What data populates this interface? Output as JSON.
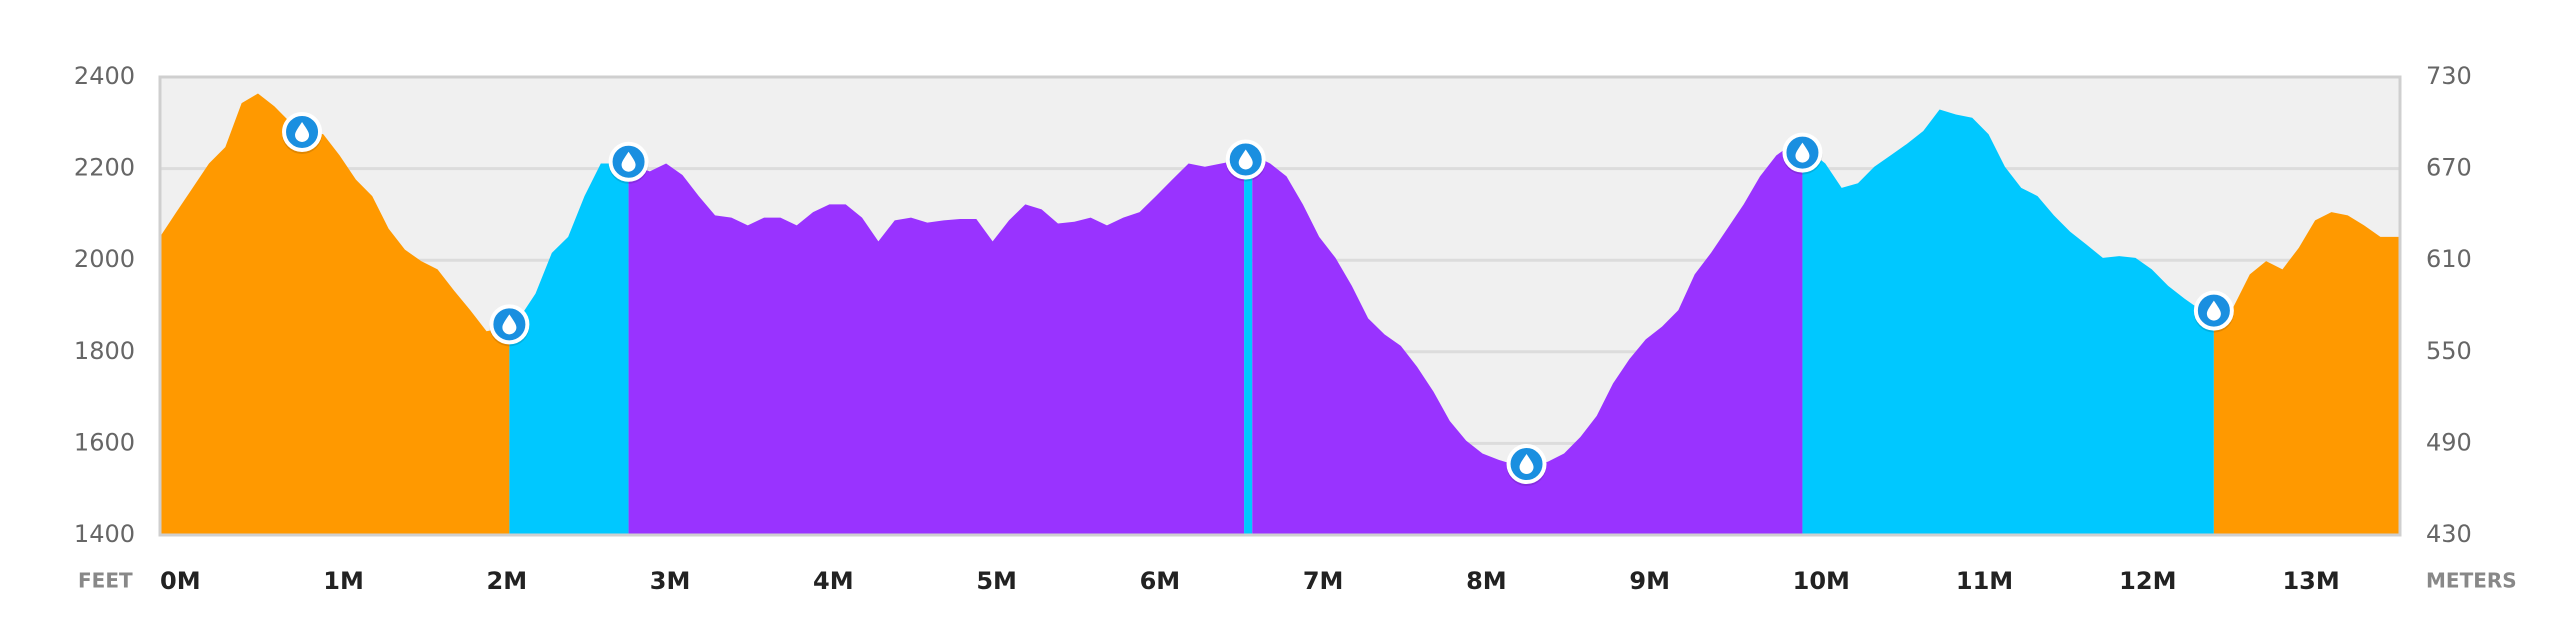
{
  "chart_data": {
    "type": "area",
    "x": [
      0,
      0.1,
      0.2,
      0.3,
      0.4,
      0.5,
      0.6,
      0.7,
      0.8,
      0.9,
      1.0,
      1.1,
      1.2,
      1.3,
      1.4,
      1.5,
      1.6,
      1.7,
      1.8,
      1.9,
      2.0,
      2.14,
      2.2,
      2.3,
      2.4,
      2.5,
      2.6,
      2.7,
      2.87,
      3.0,
      3.1,
      3.2,
      3.3,
      3.4,
      3.5,
      3.6,
      3.7,
      3.8,
      3.9,
      4.0,
      4.1,
      4.2,
      4.3,
      4.4,
      4.5,
      4.6,
      4.7,
      4.8,
      4.9,
      5.0,
      5.1,
      5.2,
      5.3,
      5.4,
      5.5,
      5.6,
      5.7,
      5.8,
      5.9,
      6.0,
      6.1,
      6.2,
      6.3,
      6.4,
      6.5,
      6.6,
      6.7,
      6.8,
      6.9,
      7.0,
      7.1,
      7.2,
      7.3,
      7.4,
      7.5,
      7.6,
      7.7,
      7.8,
      7.9,
      8.0,
      8.1,
      8.2,
      8.3,
      8.4,
      8.5,
      8.6,
      8.7,
      8.8,
      8.9,
      9.0,
      9.1,
      9.2,
      9.3,
      9.4,
      9.5,
      9.6,
      9.7,
      9.8,
      9.9,
      10.0,
      10.1,
      10.2,
      10.3,
      10.4,
      10.5,
      10.6,
      10.7,
      10.8,
      10.9,
      11.0,
      11.1,
      11.2,
      11.3,
      11.4,
      11.5,
      11.6,
      11.7,
      11.8,
      11.9,
      12.0,
      12.1,
      12.2,
      12.3,
      12.4,
      12.5,
      12.6,
      12.7,
      12.8,
      12.9,
      13.0,
      13.1,
      13.2,
      13.3,
      13.4,
      13.5,
      13.6,
      13.72
    ],
    "values": [
      2051,
      2105,
      2158,
      2211,
      2247,
      2343,
      2364,
      2336,
      2300,
      2282,
      2275,
      2229,
      2176,
      2140,
      2069,
      2023,
      1998,
      1980,
      1934,
      1891,
      1845,
      1855,
      1873,
      1927,
      2016,
      2051,
      2140,
      2211,
      2211,
      2194,
      2211,
      2186,
      2140,
      2098,
      2093,
      2076,
      2093,
      2093,
      2076,
      2105,
      2122,
      2122,
      2093,
      2041,
      2087,
      2093,
      2082,
      2087,
      2090,
      2090,
      2041,
      2087,
      2122,
      2111,
      2080,
      2084,
      2093,
      2076,
      2093,
      2105,
      2140,
      2176,
      2211,
      2204,
      2211,
      2218,
      2229,
      2211,
      2183,
      2122,
      2051,
      2005,
      1944,
      1873,
      1838,
      1813,
      1767,
      1713,
      1649,
      1606,
      1578,
      1564,
      1553,
      1553,
      1560,
      1578,
      1614,
      1660,
      1731,
      1784,
      1827,
      1855,
      1891,
      1969,
      2016,
      2069,
      2122,
      2183,
      2229,
      2254,
      2240,
      2211,
      2158,
      2168,
      2204,
      2229,
      2254,
      2282,
      2329,
      2318,
      2311,
      2275,
      2204,
      2158,
      2140,
      2098,
      2062,
      2034,
      2005,
      2009,
      2005,
      1980,
      1944,
      1916,
      1891,
      1884,
      1898,
      1969,
      1998,
      1980,
      2027,
      2087,
      2105,
      2098,
      2076,
      2051,
      2051
    ],
    "segments": [
      {
        "from": 0,
        "to": 2.14,
        "color": "#ff9900"
      },
      {
        "from": 2.14,
        "to": 2.87,
        "color": "#00c8ff"
      },
      {
        "from": 2.87,
        "to": 6.64,
        "color": "#9933ff"
      },
      {
        "from": 6.64,
        "to": 6.69,
        "color": "#00c8ff"
      },
      {
        "from": 6.69,
        "to": 10.06,
        "color": "#9933ff"
      },
      {
        "from": 10.06,
        "to": 12.58,
        "color": "#00c8ff"
      },
      {
        "from": 12.58,
        "to": 13.72,
        "color": "#ff9900"
      }
    ],
    "markers": {
      "x": [
        0.87,
        2.14,
        2.87,
        6.65,
        8.37,
        10.06,
        12.58
      ],
      "values": [
        2280,
        1860,
        2215,
        2220,
        1555,
        2235,
        1890
      ],
      "color": "#1a8fe0"
    },
    "xlim": [
      0,
      13.72
    ],
    "xticks": [
      {
        "value": 0,
        "label": "0M"
      },
      {
        "value": 1,
        "label": "1M"
      },
      {
        "value": 2,
        "label": "2M"
      },
      {
        "value": 3,
        "label": "3M"
      },
      {
        "value": 4,
        "label": "4M"
      },
      {
        "value": 5,
        "label": "5M"
      },
      {
        "value": 6,
        "label": "6M"
      },
      {
        "value": 7,
        "label": "7M"
      },
      {
        "value": 8,
        "label": "8M"
      },
      {
        "value": 9,
        "label": "9M"
      },
      {
        "value": 10,
        "label": "10M"
      },
      {
        "value": 11,
        "label": "11M"
      },
      {
        "value": 12,
        "label": "12M"
      },
      {
        "value": 13,
        "label": "13M"
      }
    ],
    "ylim": [
      1400,
      2400
    ],
    "yticks": [
      1400,
      1600,
      1800,
      2000,
      2200,
      2400
    ],
    "y2lim": [
      430,
      730
    ],
    "y2ticks": [
      430,
      490,
      550,
      610,
      670,
      730
    ],
    "y_label": "FEET",
    "y2_label": "METERS",
    "grid": true
  }
}
